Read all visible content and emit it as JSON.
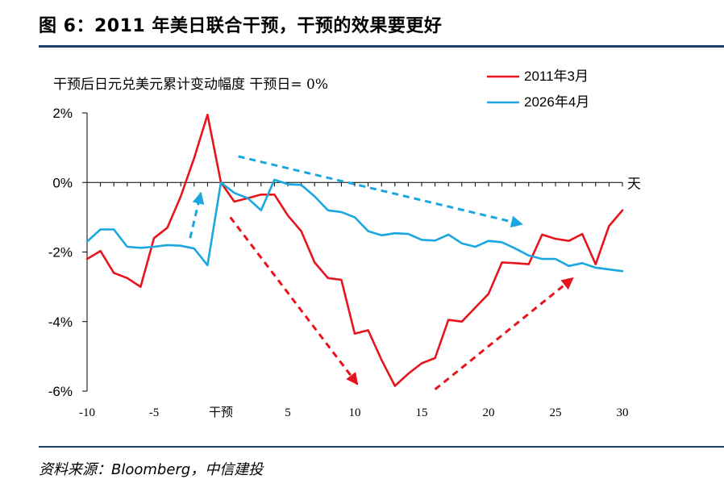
{
  "header": {
    "title": "图 6：2011 年美日联合干预，干预的效果要更好"
  },
  "footer": {
    "source": "资料来源：Bloomberg，中信建投"
  },
  "chart_data": {
    "type": "line",
    "subtitle": "干预后日元兑美元累计变动幅度 干预日= 0%",
    "x_unit_label": "天",
    "xlim": [
      -10,
      30
    ],
    "ylim": [
      -6,
      2
    ],
    "x_ticks": [
      {
        "x": -10,
        "label": "-10"
      },
      {
        "x": -5,
        "label": "-5"
      },
      {
        "x": 0,
        "label": "干预"
      },
      {
        "x": 5,
        "label": "5"
      },
      {
        "x": 10,
        "label": "10"
      },
      {
        "x": 15,
        "label": "15"
      },
      {
        "x": 20,
        "label": "20"
      },
      {
        "x": 25,
        "label": "25"
      },
      {
        "x": 30,
        "label": "30"
      }
    ],
    "y_ticks": [
      {
        "y": 2,
        "label": "2%"
      },
      {
        "y": 0,
        "label": "0%"
      },
      {
        "y": -2,
        "label": "-2%"
      },
      {
        "y": -4,
        "label": "-4%"
      },
      {
        "y": -6,
        "label": "-6%"
      }
    ],
    "legend_position": "top-right",
    "series": [
      {
        "name": "2011年3月",
        "color": "#e8141c",
        "points": [
          [
            -10,
            -2.2
          ],
          [
            -9,
            -1.97
          ],
          [
            -8,
            -2.6
          ],
          [
            -7,
            -2.75
          ],
          [
            -6,
            -3.0
          ],
          [
            -5,
            -1.6
          ],
          [
            -4,
            -1.3
          ],
          [
            -3,
            -0.4
          ],
          [
            -2,
            0.7
          ],
          [
            -1,
            1.95
          ],
          [
            0,
            0.0
          ],
          [
            1,
            -0.55
          ],
          [
            2,
            -0.45
          ],
          [
            3,
            -0.35
          ],
          [
            4,
            -0.35
          ],
          [
            5,
            -0.95
          ],
          [
            6,
            -1.4
          ],
          [
            7,
            -2.3
          ],
          [
            8,
            -2.75
          ],
          [
            9,
            -2.8
          ],
          [
            10,
            -4.35
          ],
          [
            11,
            -4.25
          ],
          [
            12,
            -5.1
          ],
          [
            13,
            -5.85
          ],
          [
            14,
            -5.5
          ],
          [
            15,
            -5.2
          ],
          [
            16,
            -5.05
          ],
          [
            17,
            -3.95
          ],
          [
            18,
            -4.0
          ],
          [
            19,
            -3.6
          ],
          [
            20,
            -3.2
          ],
          [
            21,
            -2.3
          ],
          [
            22,
            -2.32
          ],
          [
            23,
            -2.35
          ],
          [
            24,
            -1.5
          ],
          [
            25,
            -1.62
          ],
          [
            26,
            -1.68
          ],
          [
            27,
            -1.48
          ],
          [
            28,
            -2.35
          ],
          [
            29,
            -1.25
          ],
          [
            30,
            -0.8
          ]
        ]
      },
      {
        "name": "2026年4月",
        "color": "#1aa7df",
        "points": [
          [
            -10,
            -1.7
          ],
          [
            -9,
            -1.35
          ],
          [
            -8,
            -1.35
          ],
          [
            -7,
            -1.85
          ],
          [
            -6,
            -1.88
          ],
          [
            -5,
            -1.85
          ],
          [
            -4,
            -1.8
          ],
          [
            -3,
            -1.82
          ],
          [
            -2,
            -1.9
          ],
          [
            -1,
            -2.38
          ],
          [
            0,
            0.0
          ],
          [
            1,
            -0.3
          ],
          [
            2,
            -0.45
          ],
          [
            3,
            -0.8
          ],
          [
            4,
            0.08
          ],
          [
            5,
            -0.05
          ],
          [
            6,
            -0.07
          ],
          [
            7,
            -0.4
          ],
          [
            8,
            -0.8
          ],
          [
            9,
            -0.85
          ],
          [
            10,
            -1.0
          ],
          [
            11,
            -1.4
          ],
          [
            12,
            -1.52
          ],
          [
            13,
            -1.46
          ],
          [
            14,
            -1.48
          ],
          [
            15,
            -1.65
          ],
          [
            16,
            -1.67
          ],
          [
            17,
            -1.5
          ],
          [
            18,
            -1.75
          ],
          [
            19,
            -1.85
          ],
          [
            20,
            -1.68
          ],
          [
            21,
            -1.72
          ],
          [
            22,
            -1.9
          ],
          [
            23,
            -2.1
          ],
          [
            24,
            -2.2
          ],
          [
            25,
            -2.2
          ],
          [
            26,
            -2.4
          ],
          [
            27,
            -2.32
          ],
          [
            28,
            -2.45
          ],
          [
            29,
            -2.5
          ],
          [
            30,
            -2.55
          ]
        ]
      }
    ],
    "annotations": [
      {
        "type": "dashed-arrow",
        "color": "#1aa7df",
        "from": [
          -2.3,
          -1.6
        ],
        "to": [
          -1.5,
          -0.3
        ]
      },
      {
        "type": "dashed-arrow",
        "color": "#1aa7df",
        "from": [
          1.3,
          0.75
        ],
        "to": [
          22.5,
          -1.2
        ]
      },
      {
        "type": "dashed-arrow",
        "color": "#e8141c",
        "from": [
          0.7,
          -1.0
        ],
        "to": [
          10.2,
          -5.8
        ]
      },
      {
        "type": "dashed-arrow",
        "color": "#e8141c",
        "from": [
          16.0,
          -5.95
        ],
        "to": [
          26.3,
          -2.75
        ]
      }
    ]
  }
}
